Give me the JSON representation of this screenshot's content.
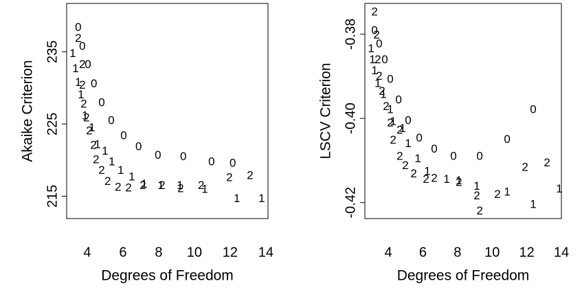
{
  "chart_data": [
    {
      "type": "scatter",
      "xlabel": "Degrees of Freedom",
      "ylabel": "Akaike Criterion",
      "xlim": [
        2.85,
        14.12
      ],
      "ylim": [
        211.9,
        241.7
      ],
      "xticks": [
        4,
        6,
        8,
        10,
        12,
        14
      ],
      "yticks": [
        215,
        225,
        235
      ],
      "series": [
        {
          "symbol": "0",
          "color": "#000000",
          "x": [
            3.5,
            3.73,
            4.04,
            4.38,
            4.81,
            5.35,
            6.04,
            6.88,
            7.96,
            9.38,
            10.96,
            12.15
          ],
          "values": [
            238.3,
            235.7,
            233.2,
            230.5,
            227.9,
            225.4,
            223.3,
            221.8,
            220.6,
            220.4,
            219.7,
            219.5
          ]
        },
        {
          "symbol": "1",
          "color": "#000000",
          "x": [
            3.19,
            3.35,
            3.5,
            3.65,
            3.88,
            4.27,
            4.58,
            5.0,
            5.38,
            5.88,
            6.5,
            7.19,
            8.12,
            9.19,
            10.58,
            12.38,
            13.77
          ],
          "values": [
            234.7,
            232.6,
            230.7,
            229.0,
            226.1,
            224.4,
            222.1,
            221.2,
            219.7,
            218.5,
            217.6,
            216.6,
            216.4,
            216.4,
            215.9,
            214.6,
            214.6
          ]
        },
        {
          "symbol": "2",
          "color": "#000000",
          "x": [
            3.5,
            3.73,
            3.73,
            3.81,
            3.96,
            4.12,
            4.35,
            4.5,
            4.81,
            5.15,
            5.73,
            6.31,
            7.12,
            8.19,
            9.23,
            10.38,
            11.96,
            13.12
          ],
          "values": [
            236.8,
            233.2,
            230.3,
            227.7,
            225.8,
            224.0,
            222.0,
            220.0,
            218.5,
            217.0,
            216.2,
            216.1,
            216.4,
            216.4,
            216.0,
            216.4,
            217.5,
            217.8
          ]
        }
      ]
    },
    {
      "type": "scatter",
      "xlabel": "Degrees of Freedom",
      "ylabel": "LSCV Criterion",
      "xlim": [
        2.65,
        14.0
      ],
      "ylim": [
        -0.4238,
        -0.3727
      ],
      "xticks": [
        4,
        6,
        8,
        10,
        12,
        14
      ],
      "yticks": [
        -0.42,
        {
          "value": -0.4,
          "label": "-0.40"
        },
        -0.38
      ],
      "series": [
        {
          "symbol": "0",
          "color": "#000000",
          "x": [
            3.21,
            3.48,
            3.8,
            4.12,
            4.6,
            5.15,
            5.79,
            6.66,
            7.77,
            9.28,
            10.87,
            12.37
          ],
          "values": [
            -0.3792,
            -0.3824,
            -0.3862,
            -0.3908,
            -0.3957,
            -0.4006,
            -0.4048,
            -0.4074,
            -0.4091,
            -0.4091,
            -0.4051,
            -0.398
          ]
        },
        {
          "symbol": "1",
          "color": "#000000",
          "x": [
            3.01,
            3.09,
            3.21,
            3.4,
            3.72,
            4.12,
            4.28,
            4.83,
            5.15,
            5.71,
            6.26,
            7.37,
            8.08,
            9.12,
            10.87,
            12.37,
            13.88
          ],
          "values": [
            -0.3836,
            -0.3862,
            -0.3888,
            -0.3918,
            -0.3944,
            -0.398,
            -0.4009,
            -0.4025,
            -0.4061,
            -0.4097,
            -0.4127,
            -0.4146,
            -0.4149,
            -0.4162,
            -0.4176,
            -0.4205,
            -0.4169
          ]
        },
        {
          "symbol": "2",
          "color": "#000000",
          "x": [
            3.21,
            3.33,
            3.4,
            3.48,
            3.64,
            3.88,
            4.12,
            4.28,
            4.67,
            4.67,
            4.99,
            5.47,
            6.18,
            6.66,
            8.08,
            9.12,
            9.28,
            10.31,
            11.9,
            13.17
          ],
          "values": [
            -0.3748,
            -0.3803,
            -0.3862,
            -0.3901,
            -0.3937,
            -0.3973,
            -0.4012,
            -0.4053,
            -0.4029,
            -0.4091,
            -0.4113,
            -0.4133,
            -0.4146,
            -0.4143,
            -0.4153,
            -0.4185,
            -0.4221,
            -0.4182,
            -0.4117,
            -0.4107
          ]
        }
      ]
    }
  ]
}
